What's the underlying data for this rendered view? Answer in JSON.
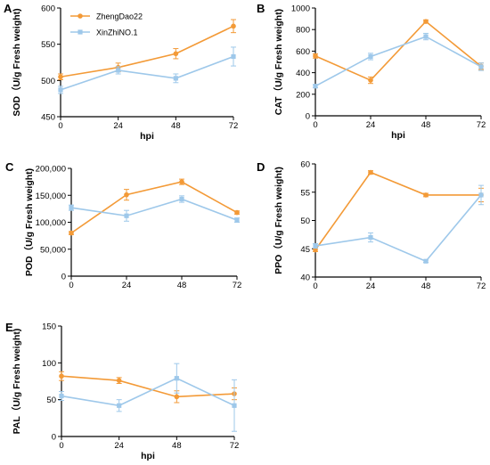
{
  "legend": {
    "series": [
      {
        "name": "ZhengDao22",
        "color": "#F39A37"
      },
      {
        "name": "XinZhiNO.1",
        "color": "#9EC8EA"
      }
    ]
  },
  "chart_data": [
    {
      "panel": "A",
      "type": "line",
      "xlabel": "hpi",
      "ylabel": "SOD（U/g Fresh weight)",
      "x": [
        0,
        24,
        48,
        72
      ],
      "ylim": [
        450,
        600
      ],
      "yticks": [
        "450",
        "500",
        "550",
        "600"
      ],
      "series": [
        {
          "name": "ZhengDao22",
          "values": [
            505,
            518,
            537,
            575
          ],
          "errors": [
            4,
            6,
            7,
            9
          ]
        },
        {
          "name": "XinZhiNO.1",
          "values": [
            487,
            514,
            503,
            533
          ],
          "errors": [
            5,
            5,
            6,
            13
          ]
        }
      ]
    },
    {
      "panel": "B",
      "type": "line",
      "xlabel": "hpi",
      "ylabel": "CAT（U/g Fresh weight)",
      "x": [
        0,
        24,
        48,
        72
      ],
      "ylim": [
        0,
        1000
      ],
      "yticks": [
        "0",
        "200",
        "400",
        "600",
        "800",
        "1000"
      ],
      "series": [
        {
          "name": "ZhengDao22",
          "values": [
            555,
            330,
            875,
            460
          ],
          "errors": [
            20,
            30,
            15,
            30
          ]
        },
        {
          "name": "XinZhiNO.1",
          "values": [
            275,
            550,
            735,
            455
          ],
          "errors": [
            15,
            30,
            30,
            35
          ]
        }
      ]
    },
    {
      "panel": "C",
      "type": "line",
      "xlabel": "",
      "ylabel": "POD（U/g Fresh weight)",
      "x": [
        0,
        24,
        48,
        72
      ],
      "ylim": [
        0,
        200000
      ],
      "yticks": [
        "0",
        "50,000",
        "100,000",
        "150,000",
        "200,000"
      ],
      "series": [
        {
          "name": "ZhengDao22",
          "values": [
            80000,
            151000,
            175000,
            118000
          ],
          "errors": [
            3000,
            10000,
            5000,
            3000
          ]
        },
        {
          "name": "XinZhiNO.1",
          "values": [
            127000,
            112000,
            143000,
            104000
          ],
          "errors": [
            5000,
            10000,
            6000,
            4000
          ]
        }
      ]
    },
    {
      "panel": "D",
      "type": "line",
      "xlabel": "",
      "ylabel": "PPO（U/g Fresh weight)",
      "x": [
        0,
        24,
        48,
        72
      ],
      "ylim": [
        40,
        60
      ],
      "yticks": [
        "40",
        "45",
        "50",
        "55",
        "60"
      ],
      "series": [
        {
          "name": "ZhengDao22",
          "values": [
            44.8,
            58.5,
            54.5,
            54.5
          ],
          "errors": [
            0.3,
            0.3,
            0.3,
            1.2
          ]
        },
        {
          "name": "XinZhiNO.1",
          "values": [
            45.5,
            47.0,
            42.8,
            54.5
          ],
          "errors": [
            0.4,
            0.8,
            0.2,
            1.7
          ]
        }
      ]
    },
    {
      "panel": "E",
      "type": "line",
      "xlabel": "hpi",
      "ylabel": "PAL（U/g Fresh weight)",
      "x": [
        0,
        24,
        48,
        72
      ],
      "ylim": [
        0,
        150
      ],
      "yticks": [
        "0",
        "50",
        "100",
        "150"
      ],
      "series": [
        {
          "name": "ZhengDao22",
          "values": [
            82,
            76,
            54,
            58
          ],
          "errors": [
            6,
            4,
            8,
            8
          ]
        },
        {
          "name": "XinZhiNO.1",
          "values": [
            55,
            42,
            79,
            42
          ],
          "errors": [
            6,
            8,
            20,
            35
          ]
        }
      ]
    }
  ]
}
